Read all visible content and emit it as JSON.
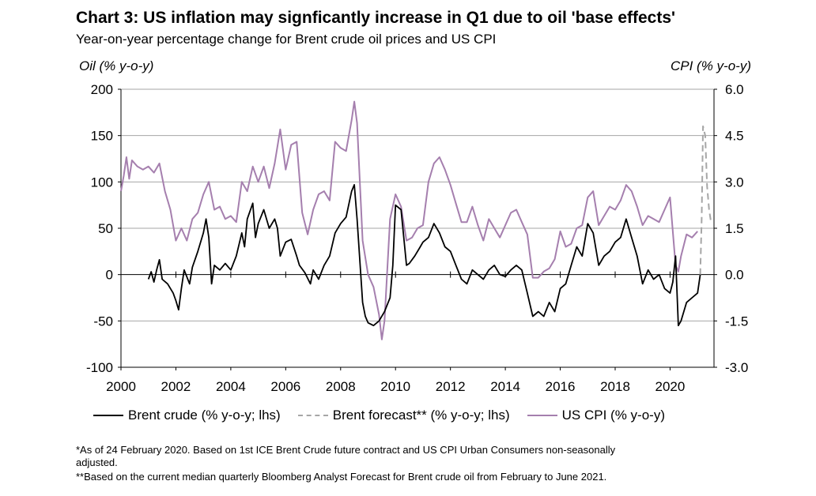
{
  "title": "Chart 3: US inflation may signficantly increase in Q1 due to oil 'base effects'",
  "subtitle": "Year-on-year percentage change for Brent crude oil prices and US CPI",
  "footnotes": [
    "*As of 24 February 2020. Based on 1st ICE Brent Crude future contract and US CPI Urban Consumers non-seasonally",
    "adjusted.",
    "**Based on the current median quarterly Bloomberg Analyst Forecast for Brent crude oil from February to June 2021."
  ],
  "colors": {
    "brent": "#000000",
    "forecast": "#a6a6a6",
    "cpi": "#a57fae",
    "grid": "#a6a6a6"
  },
  "chart_data": {
    "type": "line",
    "ylabel_left": "Oil (% y-o-y)",
    "ylabel_right": "CPI (% y-o-y)",
    "ylim_left": [
      -100,
      200
    ],
    "ylim_right": [
      -3.0,
      6.0
    ],
    "yticks_left": [
      "200",
      "150",
      "100",
      "50",
      "0",
      "-50",
      "-100"
    ],
    "yticks_right": [
      "6.0",
      "4.5",
      "3.0",
      "1.5",
      "0.0",
      "-1.5",
      "-3.0"
    ],
    "xlim": [
      2000,
      2021.6
    ],
    "xticks": [
      "2000",
      "2002",
      "2004",
      "2006",
      "2008",
      "2010",
      "2012",
      "2014",
      "2016",
      "2018",
      "2020"
    ],
    "grid": true,
    "legend_position": "bottom",
    "series": [
      {
        "name": "Brent crude (% y-o-y; lhs)",
        "axis": "left",
        "style": "solid",
        "x": [
          2001.0,
          2001.1,
          2001.2,
          2001.3,
          2001.4,
          2001.5,
          2001.7,
          2001.9,
          2002.0,
          2002.1,
          2002.2,
          2002.3,
          2002.5,
          2002.6,
          2002.8,
          2003.0,
          2003.1,
          2003.2,
          2003.3,
          2003.4,
          2003.6,
          2003.8,
          2004.0,
          2004.2,
          2004.4,
          2004.5,
          2004.6,
          2004.8,
          2004.9,
          2005.0,
          2005.2,
          2005.4,
          2005.6,
          2005.7,
          2005.8,
          2006.0,
          2006.2,
          2006.4,
          2006.5,
          2006.7,
          2006.9,
          2007.0,
          2007.2,
          2007.4,
          2007.6,
          2007.8,
          2008.0,
          2008.2,
          2008.4,
          2008.5,
          2008.6,
          2008.8,
          2008.9,
          2009.0,
          2009.2,
          2009.4,
          2009.6,
          2009.8,
          2009.9,
          2010.0,
          2010.2,
          2010.4,
          2010.5,
          2010.7,
          2010.9,
          2011.0,
          2011.2,
          2011.4,
          2011.6,
          2011.8,
          2012.0,
          2012.2,
          2012.4,
          2012.6,
          2012.8,
          2013.0,
          2013.2,
          2013.4,
          2013.6,
          2013.8,
          2014.0,
          2014.2,
          2014.4,
          2014.6,
          2014.8,
          2015.0,
          2015.2,
          2015.4,
          2015.6,
          2015.8,
          2016.0,
          2016.2,
          2016.4,
          2016.6,
          2016.8,
          2017.0,
          2017.2,
          2017.4,
          2017.6,
          2017.8,
          2018.0,
          2018.2,
          2018.4,
          2018.6,
          2018.8,
          2019.0,
          2019.2,
          2019.4,
          2019.6,
          2019.8,
          2020.0,
          2020.1,
          2020.2,
          2020.3,
          2020.4,
          2020.6,
          2020.8,
          2021.0,
          2021.1
        ],
        "y": [
          -5,
          3,
          -8,
          5,
          16,
          -5,
          -10,
          -20,
          -28,
          -38,
          -15,
          5,
          -10,
          8,
          25,
          45,
          60,
          40,
          -10,
          10,
          5,
          12,
          5,
          20,
          45,
          30,
          60,
          77,
          40,
          55,
          70,
          50,
          60,
          50,
          20,
          35,
          38,
          20,
          10,
          2,
          -10,
          5,
          -5,
          10,
          20,
          45,
          55,
          62,
          90,
          97,
          60,
          -30,
          -45,
          -52,
          -55,
          -50,
          -40,
          -25,
          10,
          75,
          70,
          10,
          12,
          20,
          30,
          35,
          40,
          55,
          45,
          30,
          25,
          10,
          -5,
          -10,
          5,
          0,
          -5,
          5,
          10,
          0,
          -2,
          5,
          10,
          5,
          -20,
          -45,
          -40,
          -45,
          -30,
          -40,
          -15,
          -10,
          10,
          30,
          20,
          55,
          45,
          10,
          20,
          25,
          35,
          40,
          60,
          40,
          20,
          -10,
          5,
          -5,
          0,
          -15,
          -20,
          -8,
          20,
          -55,
          -50,
          -30,
          -25,
          -20,
          0
        ]
      },
      {
        "name": "Brent forecast** (% y-o-y; lhs)",
        "axis": "left",
        "style": "dashed",
        "x": [
          2021.1,
          2021.15,
          2021.2,
          2021.28,
          2021.35,
          2021.42,
          2021.5
        ],
        "y": [
          0,
          60,
          160,
          150,
          95,
          70,
          55
        ]
      },
      {
        "name": "US CPI (% y-o-y)",
        "axis": "right",
        "x": [
          2000.0,
          2000.1,
          2000.2,
          2000.3,
          2000.4,
          2000.6,
          2000.8,
          2001.0,
          2001.2,
          2001.4,
          2001.6,
          2001.8,
          2002.0,
          2002.2,
          2002.4,
          2002.6,
          2002.8,
          2003.0,
          2003.2,
          2003.4,
          2003.6,
          2003.8,
          2004.0,
          2004.2,
          2004.4,
          2004.6,
          2004.8,
          2005.0,
          2005.2,
          2005.4,
          2005.6,
          2005.8,
          2006.0,
          2006.2,
          2006.4,
          2006.6,
          2006.8,
          2007.0,
          2007.2,
          2007.4,
          2007.6,
          2007.8,
          2008.0,
          2008.2,
          2008.4,
          2008.5,
          2008.6,
          2008.8,
          2009.0,
          2009.2,
          2009.4,
          2009.5,
          2009.6,
          2009.8,
          2010.0,
          2010.2,
          2010.4,
          2010.6,
          2010.8,
          2011.0,
          2011.2,
          2011.4,
          2011.6,
          2011.8,
          2012.0,
          2012.2,
          2012.4,
          2012.6,
          2012.8,
          2013.0,
          2013.2,
          2013.4,
          2013.6,
          2013.8,
          2014.0,
          2014.2,
          2014.4,
          2014.6,
          2014.8,
          2015.0,
          2015.2,
          2015.4,
          2015.6,
          2015.8,
          2016.0,
          2016.2,
          2016.4,
          2016.6,
          2016.8,
          2017.0,
          2017.2,
          2017.4,
          2017.6,
          2017.8,
          2018.0,
          2018.2,
          2018.4,
          2018.6,
          2018.8,
          2019.0,
          2019.2,
          2019.4,
          2019.6,
          2019.8,
          2020.0,
          2020.2,
          2020.3,
          2020.4,
          2020.6,
          2020.8,
          2021.0
        ],
        "y": [
          2.7,
          3.2,
          3.8,
          3.1,
          3.7,
          3.5,
          3.4,
          3.5,
          3.3,
          3.6,
          2.7,
          2.1,
          1.1,
          1.5,
          1.1,
          1.8,
          2.0,
          2.6,
          3.0,
          2.1,
          2.2,
          1.8,
          1.9,
          1.7,
          3.0,
          2.7,
          3.5,
          3.0,
          3.5,
          2.8,
          3.6,
          4.7,
          3.4,
          4.2,
          4.3,
          2.0,
          1.3,
          2.1,
          2.6,
          2.7,
          2.4,
          4.3,
          4.1,
          4.0,
          5.0,
          5.6,
          4.9,
          1.1,
          0.0,
          -0.4,
          -1.3,
          -2.1,
          -1.5,
          1.8,
          2.6,
          2.2,
          1.1,
          1.2,
          1.5,
          1.6,
          3.0,
          3.6,
          3.8,
          3.4,
          2.9,
          2.3,
          1.7,
          1.7,
          2.2,
          1.6,
          1.1,
          1.8,
          1.5,
          1.2,
          1.6,
          2.0,
          2.1,
          1.7,
          1.3,
          -0.1,
          -0.1,
          0.1,
          0.2,
          0.5,
          1.4,
          0.9,
          1.0,
          1.5,
          1.6,
          2.5,
          2.7,
          1.6,
          1.9,
          2.2,
          2.1,
          2.4,
          2.9,
          2.7,
          2.2,
          1.6,
          1.9,
          1.8,
          1.7,
          2.1,
          2.5,
          0.3,
          0.1,
          0.6,
          1.3,
          1.2,
          1.4
        ]
      }
    ]
  }
}
